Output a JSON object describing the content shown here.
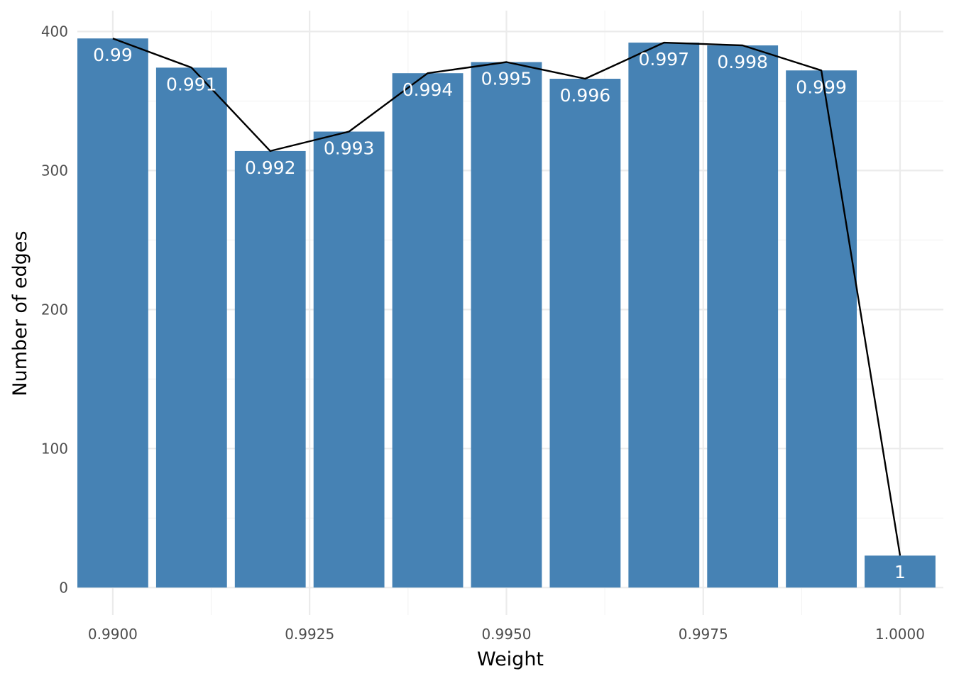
{
  "chart_data": {
    "type": "bar",
    "title": "",
    "xlabel": "Weight",
    "ylabel": "Number of edges",
    "x": [
      0.99,
      0.991,
      0.992,
      0.993,
      0.994,
      0.995,
      0.996,
      0.997,
      0.998,
      0.999,
      1.0
    ],
    "values": [
      395,
      374,
      314,
      328,
      370,
      378,
      366,
      392,
      390,
      372,
      23
    ],
    "bar_labels": [
      "0.99",
      "0.991",
      "0.992",
      "0.993",
      "0.994",
      "0.995",
      "0.996",
      "0.997",
      "0.998",
      "0.999",
      "1"
    ],
    "line_values": [
      395,
      374,
      314,
      328,
      370,
      378,
      366,
      392,
      390,
      372,
      23
    ],
    "xlim": [
      0.98955,
      1.00055
    ],
    "ylim": [
      -19.75,
      415
    ],
    "x_ticks": [
      0.99,
      0.9925,
      0.995,
      0.9975,
      1.0
    ],
    "x_tick_labels": [
      "0.9900",
      "0.9925",
      "0.9950",
      "0.9975",
      "1.0000"
    ],
    "y_ticks": [
      0,
      100,
      200,
      300,
      400
    ],
    "y_tick_labels": [
      "0",
      "100",
      "200",
      "300",
      "400"
    ],
    "grid": true,
    "legend": "none",
    "colors": {
      "bar": "#4682b4",
      "line": "#000000",
      "bar_label": "#ffffff"
    }
  }
}
